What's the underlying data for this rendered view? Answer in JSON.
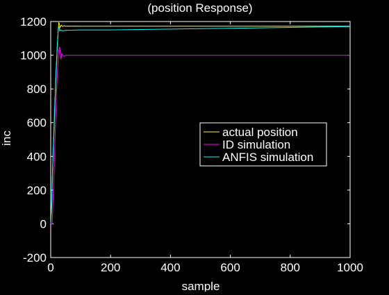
{
  "chart_data": {
    "type": "line",
    "title": "(position Response)",
    "xlabel": "sample",
    "ylabel": "inc",
    "xlim": [
      0,
      1000
    ],
    "ylim": [
      -200,
      1200
    ],
    "xticks": [
      0,
      200,
      400,
      600,
      800,
      1000
    ],
    "yticks": [
      -200,
      0,
      200,
      400,
      600,
      800,
      1000,
      1200
    ],
    "grid": false,
    "legend_position": "right-middle",
    "colors": {
      "background": "#000000",
      "axes": "#ffffff",
      "text": "#ffffff"
    },
    "series": [
      {
        "name": "actual position",
        "color": "#ffff00",
        "x": [
          0,
          3,
          6,
          10,
          14,
          18,
          22,
          25,
          27,
          29,
          31,
          33,
          36,
          40,
          45,
          50,
          60,
          70,
          80,
          100,
          200,
          400,
          600,
          800,
          1000
        ],
        "y": [
          0,
          100,
          300,
          500,
          700,
          900,
          1050,
          1150,
          1195,
          1185,
          1165,
          1172,
          1178,
          1170,
          1175,
          1172,
          1173,
          1172,
          1173,
          1172,
          1172,
          1172,
          1172,
          1172,
          1172
        ]
      },
      {
        "name": "ID simulation",
        "color": "#ff00ff",
        "x": [
          0,
          5,
          8,
          12,
          16,
          20,
          24,
          27,
          30,
          32,
          34,
          37,
          40,
          45,
          50,
          60,
          100,
          200,
          400,
          600,
          800,
          1000
        ],
        "y": [
          0,
          0,
          150,
          350,
          600,
          800,
          950,
          1030,
          1050,
          1015,
          975,
          1010,
          1000,
          995,
          1000,
          1000,
          1000,
          1000,
          1000,
          1000,
          1000,
          1000
        ]
      },
      {
        "name": "ANFIS simulation",
        "color": "#00ffff",
        "x": [
          0,
          3,
          6,
          10,
          14,
          18,
          22,
          25,
          28,
          30,
          32,
          35,
          40,
          50,
          100,
          200,
          400,
          600,
          800,
          1000
        ],
        "y": [
          0,
          120,
          320,
          520,
          720,
          920,
          1060,
          1150,
          1170,
          1145,
          1150,
          1148,
          1145,
          1148,
          1150,
          1150,
          1155,
          1160,
          1165,
          1170
        ]
      }
    ]
  }
}
